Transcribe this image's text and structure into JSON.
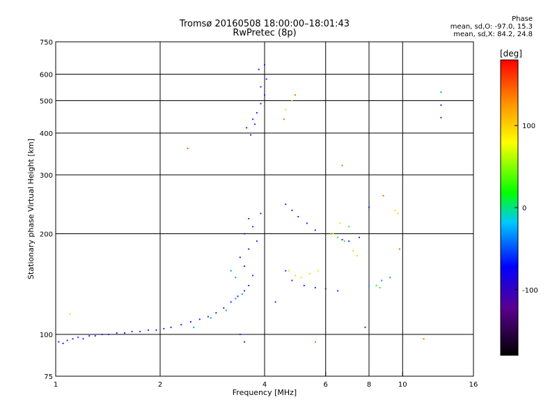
{
  "header": {
    "title": "Tromsø 20160508 18:00:00–18:01:43",
    "subtitle": "RwPretec (8p)",
    "phase_title": "Phase",
    "phase_line1": "mean, sd,O: -97.0, 15.3",
    "phase_line2": "mean, sd,X:  84.2, 24.8"
  },
  "chart_data": {
    "type": "scatter",
    "title": "Tromsø 20160508 18:00:00–18:01:43",
    "subtitle": "RwPretec (8p)",
    "xlabel": "Frequency [MHz]",
    "ylabel": "Stationary phase Virtual Height [km]",
    "x_scale": "log",
    "y_scale": "log",
    "xlim": [
      1,
      16
    ],
    "ylim": [
      75,
      750
    ],
    "x_ticks": [
      1,
      2,
      4,
      6,
      8,
      10,
      16
    ],
    "y_ticks": [
      75,
      100,
      200,
      300,
      400,
      500,
      600,
      750
    ],
    "x_gridlines": [
      2,
      4,
      6,
      8,
      10
    ],
    "y_gridlines": [
      100,
      200,
      300,
      400,
      500,
      600
    ],
    "grid": true,
    "colorbar": {
      "label": "[deg]",
      "ticks": [
        100,
        0,
        -100
      ],
      "range": [
        -180,
        180
      ],
      "colors": [
        "#000000",
        "#5a0090",
        "#0000ff",
        "#00c8ff",
        "#00ff00",
        "#ffff00",
        "#ff8c00",
        "#ff0000"
      ]
    },
    "series": [
      {
        "color": "#2020ff",
        "points": [
          [
            1.02,
            95
          ],
          [
            1.05,
            94
          ],
          [
            1.08,
            96
          ],
          [
            1.12,
            97
          ],
          [
            1.16,
            98
          ],
          [
            1.2,
            97
          ],
          [
            1.25,
            99
          ],
          [
            1.3,
            99
          ],
          [
            1.36,
            100
          ],
          [
            1.42,
            100
          ],
          [
            1.5,
            101
          ],
          [
            1.58,
            101
          ],
          [
            1.66,
            102
          ],
          [
            1.75,
            102
          ],
          [
            1.85,
            103
          ],
          [
            1.95,
            103
          ],
          [
            2.05,
            104
          ],
          [
            2.15,
            105
          ],
          [
            2.3,
            107
          ],
          [
            2.45,
            109
          ],
          [
            2.6,
            111
          ],
          [
            2.75,
            113
          ],
          [
            2.9,
            116
          ],
          [
            3.05,
            120
          ],
          [
            3.2,
            125
          ],
          [
            3.35,
            130
          ],
          [
            3.5,
            135
          ],
          [
            3.6,
            140
          ],
          [
            3.7,
            150
          ],
          [
            3.5,
            160
          ],
          [
            3.4,
            170
          ],
          [
            3.6,
            180
          ],
          [
            3.8,
            190
          ],
          [
            3.5,
            200
          ],
          [
            3.7,
            210
          ],
          [
            3.6,
            222
          ],
          [
            3.9,
            230
          ],
          [
            3.55,
            415
          ],
          [
            3.7,
            440
          ],
          [
            3.8,
            460
          ],
          [
            3.9,
            490
          ],
          [
            4.0,
            520
          ],
          [
            3.9,
            550
          ],
          [
            4.05,
            580
          ],
          [
            3.85,
            620
          ],
          [
            4.0,
            640
          ],
          [
            3.65,
            395
          ],
          [
            3.75,
            425
          ],
          [
            4.6,
            245
          ],
          [
            4.8,
            235
          ],
          [
            5.0,
            225
          ],
          [
            5.3,
            215
          ],
          [
            5.6,
            205
          ],
          [
            4.6,
            155
          ],
          [
            4.8,
            145
          ],
          [
            5.2,
            140
          ],
          [
            5.6,
            138
          ],
          [
            6.0,
            137
          ],
          [
            6.5,
            135
          ],
          [
            7.0,
            190
          ],
          [
            7.5,
            195
          ],
          [
            8.0,
            240
          ],
          [
            12.9,
            445
          ],
          [
            12.9,
            485
          ],
          [
            3.4,
            100
          ],
          [
            4.3,
            125
          ]
        ]
      },
      {
        "color": "#0096ff",
        "points": [
          [
            2.5,
            105
          ],
          [
            2.8,
            112
          ],
          [
            3.1,
            118
          ],
          [
            3.3,
            128
          ],
          [
            3.45,
            132
          ],
          [
            3.2,
            155
          ],
          [
            3.3,
            148
          ],
          [
            8.0,
            140
          ],
          [
            8.7,
            145
          ],
          [
            9.2,
            148
          ],
          [
            12.9,
            530
          ]
        ]
      },
      {
        "color": "#ffd700",
        "points": [
          [
            4.7,
            155
          ],
          [
            4.9,
            150
          ],
          [
            5.1,
            148
          ],
          [
            5.4,
            152
          ],
          [
            5.7,
            155
          ],
          [
            4.6,
            470
          ],
          [
            4.8,
            500
          ],
          [
            6.3,
            200
          ],
          [
            6.6,
            215
          ],
          [
            7.2,
            178
          ],
          [
            7.4,
            172
          ],
          [
            9.5,
            235
          ],
          [
            9.7,
            230
          ],
          [
            1.1,
            115
          ]
        ]
      },
      {
        "color": "#32e632",
        "points": [
          [
            6.2,
            200
          ],
          [
            6.5,
            195
          ],
          [
            6.8,
            190
          ],
          [
            7.0,
            210
          ],
          [
            8.4,
            140
          ],
          [
            8.6,
            138
          ]
        ]
      },
      {
        "color": "#ff6400",
        "points": [
          [
            4.55,
            440
          ],
          [
            4.9,
            520
          ],
          [
            8.8,
            260
          ],
          [
            9.8,
            180
          ],
          [
            11.5,
            97
          ],
          [
            5.6,
            95
          ],
          [
            2.4,
            360
          ],
          [
            6.7,
            320
          ]
        ]
      },
      {
        "color": "#7800a0",
        "points": [
          [
            6.7,
            192
          ],
          [
            7.8,
            105
          ],
          [
            3.5,
            95
          ]
        ]
      }
    ]
  }
}
